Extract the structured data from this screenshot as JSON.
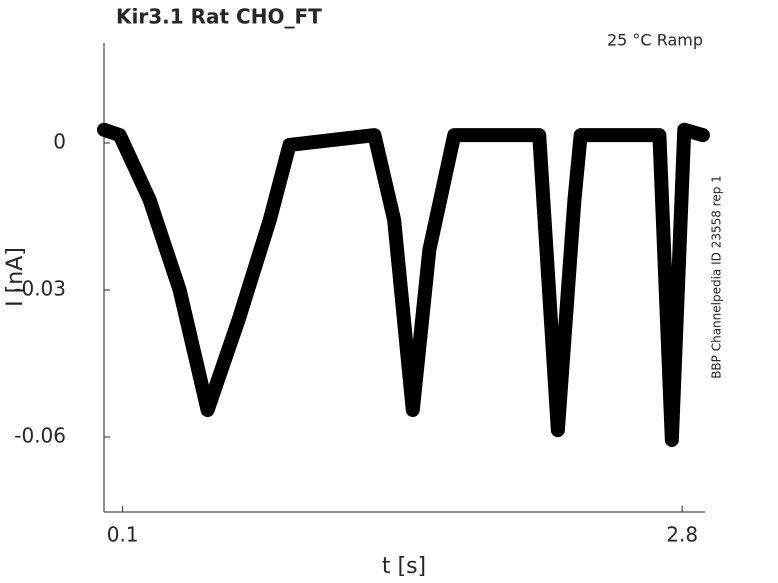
{
  "chart_data": {
    "type": "line",
    "title": "Kir3.1  Rat  CHO_FT",
    "annotation": "25 °C  Ramp",
    "side_note": "BBP Channelpedia ID 23558 rep 1",
    "x_label": "t [s]",
    "y_label": "I [nA]",
    "x": [
      0.01,
      0.086,
      0.23,
      0.375,
      0.51,
      0.66,
      0.81,
      0.905,
      1.315,
      1.41,
      1.5,
      1.58,
      1.7,
      2.11,
      2.2,
      2.28,
      2.31,
      2.69,
      2.75,
      2.81,
      2.9
    ],
    "series": [
      {
        "color": "#000000",
        "values": [
          0.0027,
          0.0016,
          -0.0116,
          -0.03,
          -0.0545,
          -0.036,
          -0.0157,
          -0.0004,
          0.0016,
          -0.0157,
          -0.0545,
          -0.0218,
          0.0016,
          0.0016,
          -0.0586,
          -0.0116,
          0.0016,
          0.0016,
          -0.0606,
          0.0027,
          0.0016
        ]
      }
    ],
    "xlim": [
      0.01,
      2.91
    ],
    "ylim": [
      -0.0753,
      0.0204
    ],
    "xticks": [
      0.1,
      2.8
    ],
    "yticks": [
      0,
      -0.03,
      -0.06
    ]
  }
}
